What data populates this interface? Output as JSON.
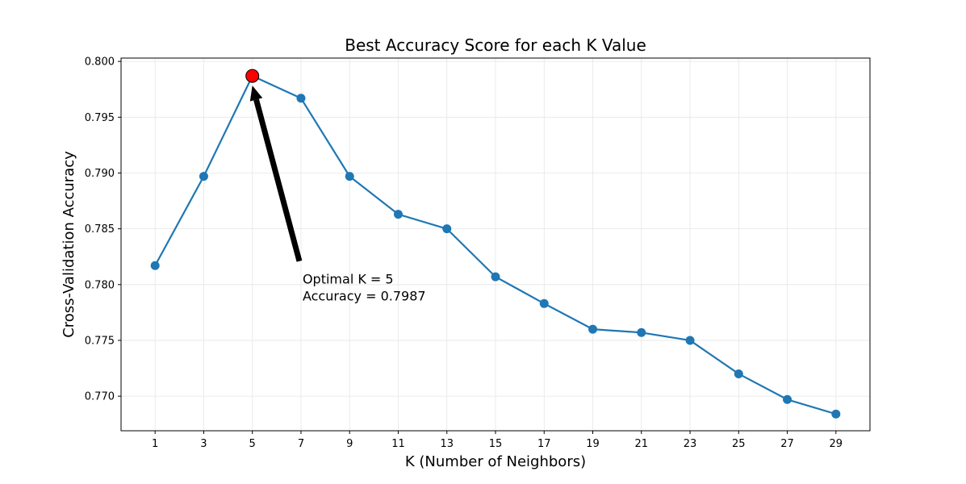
{
  "chart_data": {
    "type": "line",
    "title": "Best Accuracy Score for each K Value",
    "xlabel": "K (Number of Neighbors)",
    "ylabel": "Cross-Validation Accuracy",
    "x": [
      1,
      3,
      5,
      7,
      9,
      11,
      13,
      15,
      17,
      19,
      21,
      23,
      25,
      27,
      29
    ],
    "x_tick_labels": [
      "1",
      "3",
      "5",
      "7",
      "9",
      "11",
      "13",
      "15",
      "17",
      "19",
      "21",
      "23",
      "25",
      "27",
      "29"
    ],
    "xlim": [
      -0.4,
      30.4
    ],
    "ylim": [
      0.7669,
      0.8003
    ],
    "y_ticks": [
      0.77,
      0.775,
      0.78,
      0.785,
      0.79,
      0.795,
      0.8
    ],
    "y_tick_labels": [
      "0.770",
      "0.775",
      "0.780",
      "0.785",
      "0.790",
      "0.795",
      "0.800"
    ],
    "series": [
      {
        "values": [
          0.7817,
          0.7897,
          0.7987,
          0.7967,
          0.7897,
          0.7863,
          0.785,
          0.7807,
          0.7783,
          0.776,
          0.7757,
          0.775,
          0.772,
          0.7697,
          0.7684
        ],
        "color": "#1f77b4"
      }
    ],
    "highlight": {
      "x": 5,
      "y": 0.7987,
      "color": "#ff0000"
    },
    "annotation": {
      "line1": "Optimal K = 5",
      "line2": "Accuracy = 0.7987",
      "text_anchor": {
        "x": 7,
        "y": 0.7821
      }
    },
    "grid": true
  }
}
